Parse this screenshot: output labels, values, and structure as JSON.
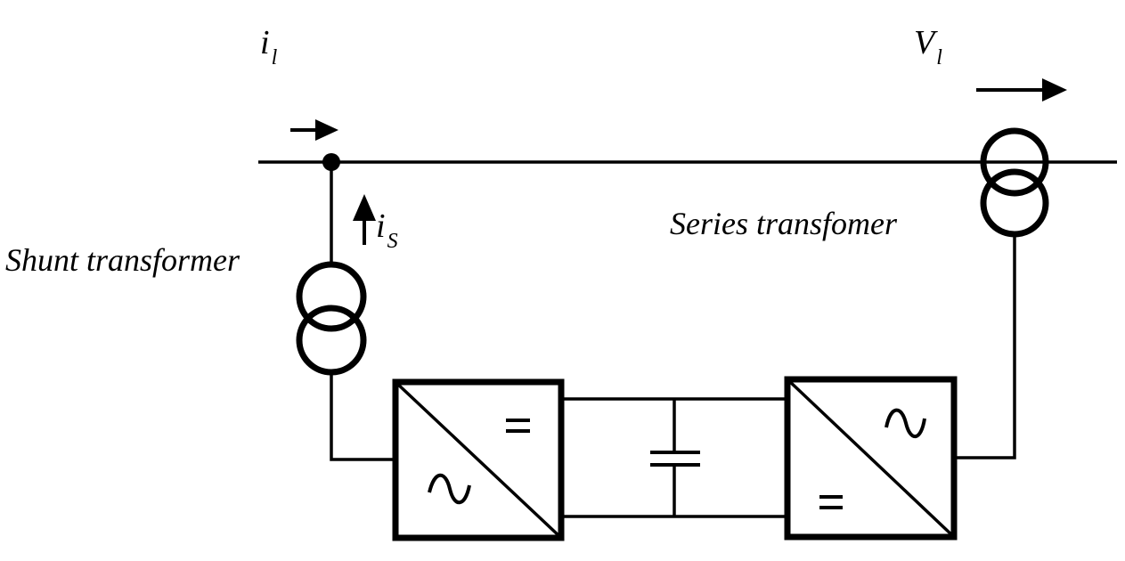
{
  "labels": {
    "line_current": {
      "main": "i",
      "sub": "l"
    },
    "shunt_current": {
      "main": "i",
      "sub": "S"
    },
    "line_voltage": {
      "main": "V",
      "sub": "l"
    },
    "shunt_transformer": "Shunt transformer",
    "series_transformer": "Series transfomer"
  },
  "converters": {
    "left": {
      "dc_symbol": "=",
      "ac_symbol": "∿"
    },
    "right": {
      "dc_symbol": "=",
      "ac_symbol": "∿"
    }
  }
}
